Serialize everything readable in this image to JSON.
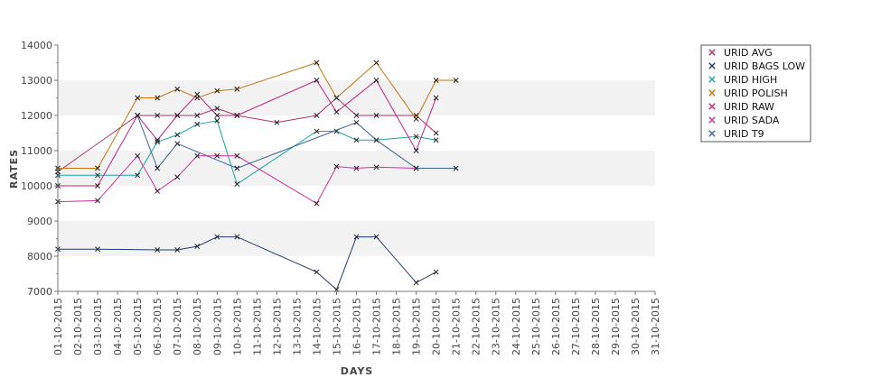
{
  "chart_data": {
    "type": "line",
    "xlabel": "DAYS",
    "ylabel": "RATES",
    "ylim": [
      7000,
      14000
    ],
    "yticks": [
      7000,
      8000,
      9000,
      10000,
      11000,
      12000,
      13000,
      14000
    ],
    "grid": "alternating horizontal bands",
    "legend_position": "right",
    "categories": [
      "01-10-2015",
      "02-10-2015",
      "03-10-2015",
      "04-10-2015",
      "05-10-2015",
      "06-10-2015",
      "07-10-2015",
      "08-10-2015",
      "09-10-2015",
      "10-10-2015",
      "11-10-2015",
      "12-10-2015",
      "13-10-2015",
      "14-10-2015",
      "15-10-2015",
      "16-10-2015",
      "17-10-2015",
      "18-10-2015",
      "19-10-2015",
      "20-10-2015",
      "21-10-2015",
      "22-10-2015",
      "23-10-2015",
      "24-10-2015",
      "25-10-2015",
      "26-10-2015",
      "27-10-2015",
      "28-10-2015",
      "29-10-2015",
      "30-10-2015",
      "31-10-2015"
    ],
    "series": [
      {
        "name": "URID AVG",
        "color": "#b0306a",
        "points": [
          [
            "01-10-2015",
            10400
          ],
          [
            "05-10-2015",
            12000
          ],
          [
            "06-10-2015",
            12000
          ],
          [
            "07-10-2015",
            12000
          ],
          [
            "08-10-2015",
            12000
          ],
          [
            "09-10-2015",
            12200
          ],
          [
            "10-10-2015",
            12000
          ],
          [
            "12-10-2015",
            11800
          ],
          [
            "14-10-2015",
            12000
          ],
          [
            "15-10-2015",
            12500
          ],
          [
            "16-10-2015",
            12000
          ],
          [
            "17-10-2015",
            12000
          ],
          [
            "19-10-2015",
            12000
          ],
          [
            "20-10-2015",
            11500
          ]
        ]
      },
      {
        "name": "URID BAGS LOW",
        "color": "#1f3a6e",
        "points": [
          [
            "01-10-2015",
            8200
          ],
          [
            "03-10-2015",
            8200
          ],
          [
            "06-10-2015",
            8180
          ],
          [
            "07-10-2015",
            8180
          ],
          [
            "08-10-2015",
            8280
          ],
          [
            "09-10-2015",
            8550
          ],
          [
            "10-10-2015",
            8550
          ],
          [
            "14-10-2015",
            7550
          ],
          [
            "15-10-2015",
            7050
          ],
          [
            "16-10-2015",
            8550
          ],
          [
            "17-10-2015",
            8550
          ],
          [
            "19-10-2015",
            7250
          ],
          [
            "20-10-2015",
            7550
          ]
        ]
      },
      {
        "name": "URID HIGH",
        "color": "#17a5a5",
        "points": [
          [
            "01-10-2015",
            10300
          ],
          [
            "03-10-2015",
            10300
          ],
          [
            "05-10-2015",
            10300
          ],
          [
            "06-10-2015",
            11250
          ],
          [
            "07-10-2015",
            11450
          ],
          [
            "08-10-2015",
            11750
          ],
          [
            "09-10-2015",
            11850
          ],
          [
            "10-10-2015",
            10050
          ],
          [
            "14-10-2015",
            11550
          ],
          [
            "15-10-2015",
            11550
          ],
          [
            "16-10-2015",
            11300
          ],
          [
            "17-10-2015",
            11300
          ],
          [
            "19-10-2015",
            11400
          ],
          [
            "20-10-2015",
            11300
          ]
        ]
      },
      {
        "name": "URID POLISH",
        "color": "#c8730a",
        "points": [
          [
            "01-10-2015",
            10500
          ],
          [
            "03-10-2015",
            10500
          ],
          [
            "05-10-2015",
            12500
          ],
          [
            "06-10-2015",
            12500
          ],
          [
            "07-10-2015",
            12750
          ],
          [
            "08-10-2015",
            12500
          ],
          [
            "09-10-2015",
            12700
          ],
          [
            "10-10-2015",
            12750
          ],
          [
            "14-10-2015",
            13500
          ],
          [
            "15-10-2015",
            12500
          ],
          [
            "17-10-2015",
            13500
          ],
          [
            "19-10-2015",
            11900
          ],
          [
            "20-10-2015",
            13000
          ],
          [
            "21-10-2015",
            13000
          ]
        ]
      },
      {
        "name": "URID RAW",
        "color": "#c02080",
        "points": [
          [
            "01-10-2015",
            10000
          ],
          [
            "03-10-2015",
            10000
          ],
          [
            "05-10-2015",
            12000
          ],
          [
            "06-10-2015",
            11300
          ],
          [
            "07-10-2015",
            12000
          ],
          [
            "08-10-2015",
            12600
          ],
          [
            "09-10-2015",
            12000
          ],
          [
            "10-10-2015",
            12000
          ],
          [
            "14-10-2015",
            13000
          ],
          [
            "15-10-2015",
            12100
          ],
          [
            "17-10-2015",
            13000
          ],
          [
            "19-10-2015",
            11000
          ],
          [
            "20-10-2015",
            12500
          ]
        ]
      },
      {
        "name": "URID SADA",
        "color": "#d0309a",
        "points": [
          [
            "01-10-2015",
            9550
          ],
          [
            "03-10-2015",
            9580
          ],
          [
            "05-10-2015",
            10850
          ],
          [
            "06-10-2015",
            9850
          ],
          [
            "07-10-2015",
            10250
          ],
          [
            "08-10-2015",
            10850
          ],
          [
            "09-10-2015",
            10850
          ],
          [
            "10-10-2015",
            10850
          ],
          [
            "14-10-2015",
            9500
          ],
          [
            "15-10-2015",
            10550
          ],
          [
            "16-10-2015",
            10500
          ],
          [
            "17-10-2015",
            10530
          ],
          [
            "19-10-2015",
            10500
          ]
        ]
      },
      {
        "name": "URID T9",
        "color": "#3a5f9a",
        "points": [
          [
            "05-10-2015",
            12000
          ],
          [
            "06-10-2015",
            10500
          ],
          [
            "07-10-2015",
            11200
          ],
          [
            "10-10-2015",
            10500
          ],
          [
            "16-10-2015",
            11800
          ],
          [
            "17-10-2015",
            11300
          ],
          [
            "19-10-2015",
            10500
          ],
          [
            "21-10-2015",
            10500
          ]
        ]
      }
    ]
  }
}
